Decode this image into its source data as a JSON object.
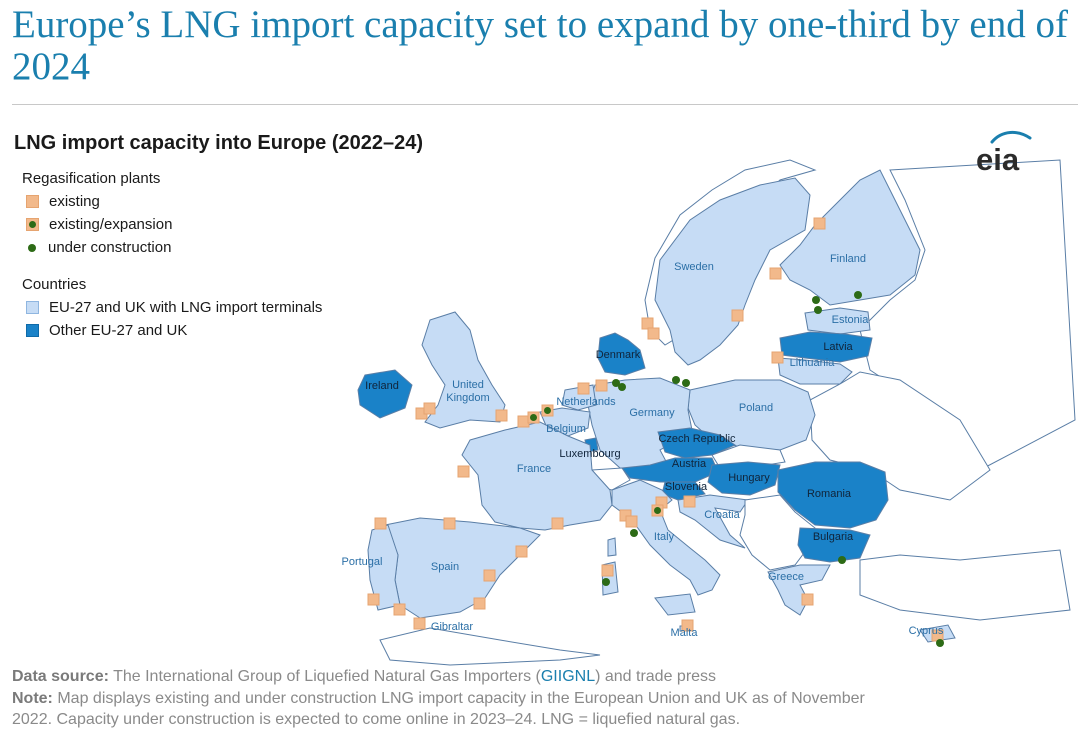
{
  "headline": "Europe’s LNG import capacity set to expand by one-third by end of 2024",
  "map_title": "LNG import capacity into Europe (2022–24)",
  "logo_text": "eia",
  "legend": {
    "plants_heading": "Regasification plants",
    "existing": "existing",
    "existing_expansion": "existing/expansion",
    "under_construction": "under construction",
    "countries_heading": "Countries",
    "eu_with_terminals": "EU-27 and UK with LNG import terminals",
    "other_eu": "Other EU-27 and UK"
  },
  "colors": {
    "title": "#1a7fae",
    "eu_with_terminals": "#c6dcf5",
    "other_eu": "#1a82c8",
    "existing_plant": "#f2b98b",
    "under_construction_plant": "#2d6b16",
    "other_land": "#ffffff",
    "border": "#5a7ea6"
  },
  "country_labels": {
    "sweden": "Sweden",
    "finland": "Finland",
    "estonia": "Estonia",
    "latvia": "Latvia",
    "lithuania": "Lithuania",
    "denmark": "Denmark",
    "ireland": "Ireland",
    "uk": "United Kingdom",
    "netherlands": "Netherlands",
    "belgium": "Belgium",
    "germany": "Germany",
    "poland": "Poland",
    "czech": "Czech Republic",
    "luxembourg": "Luxembourg",
    "france": "France",
    "austria": "Austria",
    "hungary": "Hungary",
    "slovenia": "Slovenia",
    "romania": "Romania",
    "croatia": "Croatia",
    "italy": "Italy",
    "bulgaria": "Bulgaria",
    "portugal": "Portugal",
    "spain": "Spain",
    "greece": "Greece",
    "gibraltar": "Gibraltar",
    "malta": "Malta",
    "cyprus": "Cyprus"
  },
  "footer": {
    "source_label": "Data source:",
    "source_text_1": "The International Group of Liquefied Natural Gas Importers (",
    "source_link": "GIIGNL",
    "source_text_2": ") and trade press",
    "note_label": "Note:",
    "note_line1": "Map displays existing and under construction LNG import capacity in the European Union and UK as of November",
    "note_line2": "2022. Capacity under construction is expected to come online in 2023–24. LNG = liquefied natural gas."
  }
}
